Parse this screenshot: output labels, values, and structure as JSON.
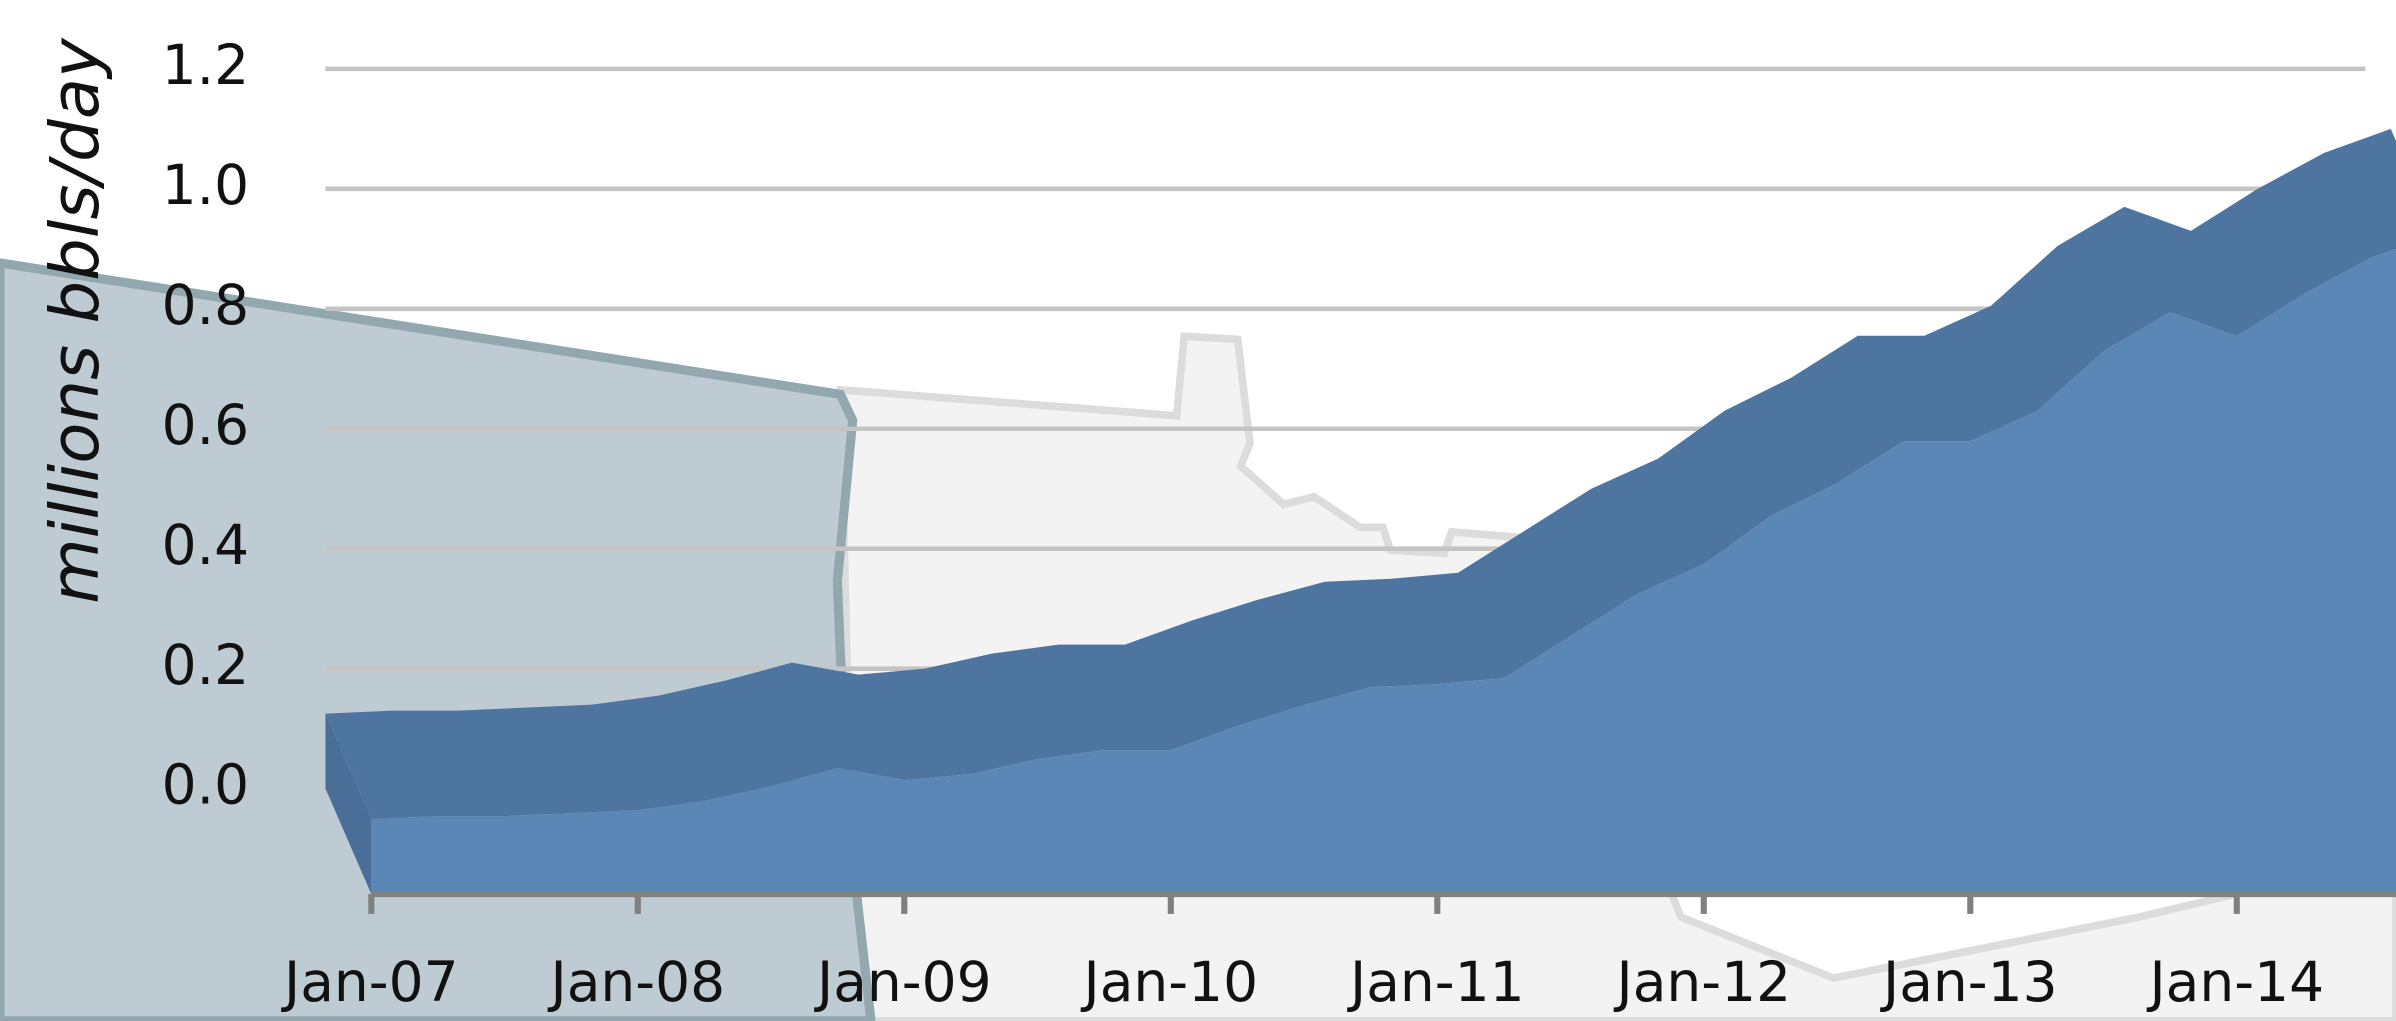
{
  "chart_data": {
    "type": "area3d",
    "ylabel": "millions bbls/day",
    "categories": [
      "Jan-07",
      null,
      null,
      null,
      "Jan-08",
      null,
      null,
      null,
      "Jan-09",
      null,
      null,
      null,
      "Jan-10",
      null,
      null,
      null,
      "Jan-11",
      null,
      null,
      null,
      "Jan-12",
      null,
      null,
      null,
      "Jan-13",
      null,
      null,
      null,
      "Jan-14",
      null,
      null,
      null
    ],
    "values": [
      0.125,
      0.13,
      0.13,
      0.135,
      0.14,
      0.155,
      0.18,
      0.21,
      0.19,
      0.2,
      0.225,
      0.24,
      0.24,
      0.28,
      0.315,
      0.345,
      0.35,
      0.36,
      0.43,
      0.5,
      0.55,
      0.63,
      0.685,
      0.755,
      0.755,
      0.805,
      0.905,
      0.97,
      0.93,
      1.0,
      1.06,
      1.1
    ],
    "color": "#5b87b6",
    "top_color": "#4e74a0",
    "ylim": [
      0,
      1.2
    ],
    "yticks": [
      {
        "value": 0,
        "label": "0.0"
      },
      0.2,
      0.4,
      0.6,
      0.8,
      {
        "value": 1,
        "label": "1.0"
      },
      1.2
    ],
    "grid": true
  }
}
